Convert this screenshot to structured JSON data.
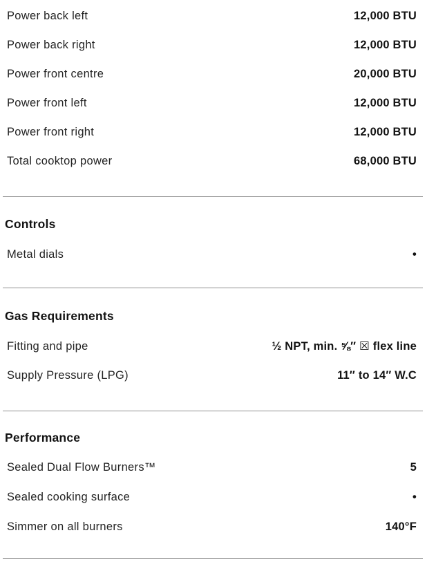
{
  "page": {
    "background_color": "#ffffff",
    "text_color": "#1f1f1f",
    "divider_color": "#8f8f8f"
  },
  "spec_table": {
    "sections": [
      {
        "name": "cooktop-power",
        "rows": [
          {
            "label": "Power back left",
            "value": "12,000 BTU"
          },
          {
            "label": "Power back right",
            "value": "12,000 BTU"
          },
          {
            "label": "Power front centre",
            "value": "20,000 BTU"
          },
          {
            "label": "Power front left",
            "value": "12,000 BTU"
          },
          {
            "label": "Power front right",
            "value": "12,000 BTU"
          },
          {
            "label": "Total cooktop power",
            "value": "68,000 BTU"
          }
        ]
      },
      {
        "name": "controls",
        "header": "Controls",
        "rows": [
          {
            "label": "Metal dials",
            "value": "•"
          }
        ]
      },
      {
        "name": "gas-requirements",
        "header": "Gas Requirements",
        "rows": [
          {
            "label": "Fitting and pipe",
            "value": "½ NPT, min. ⅝″ ☒ flex line"
          },
          {
            "label": "Supply Pressure (LPG)",
            "value": "11″ to 14″ W.C"
          }
        ]
      },
      {
        "name": "performance",
        "header": "Performance",
        "rows": [
          {
            "label": "Sealed Dual Flow Burners™",
            "value": "5"
          },
          {
            "label": "Sealed cooking surface",
            "value": "•"
          },
          {
            "label": "Simmer on all burners",
            "value": "140°F"
          }
        ]
      }
    ]
  }
}
